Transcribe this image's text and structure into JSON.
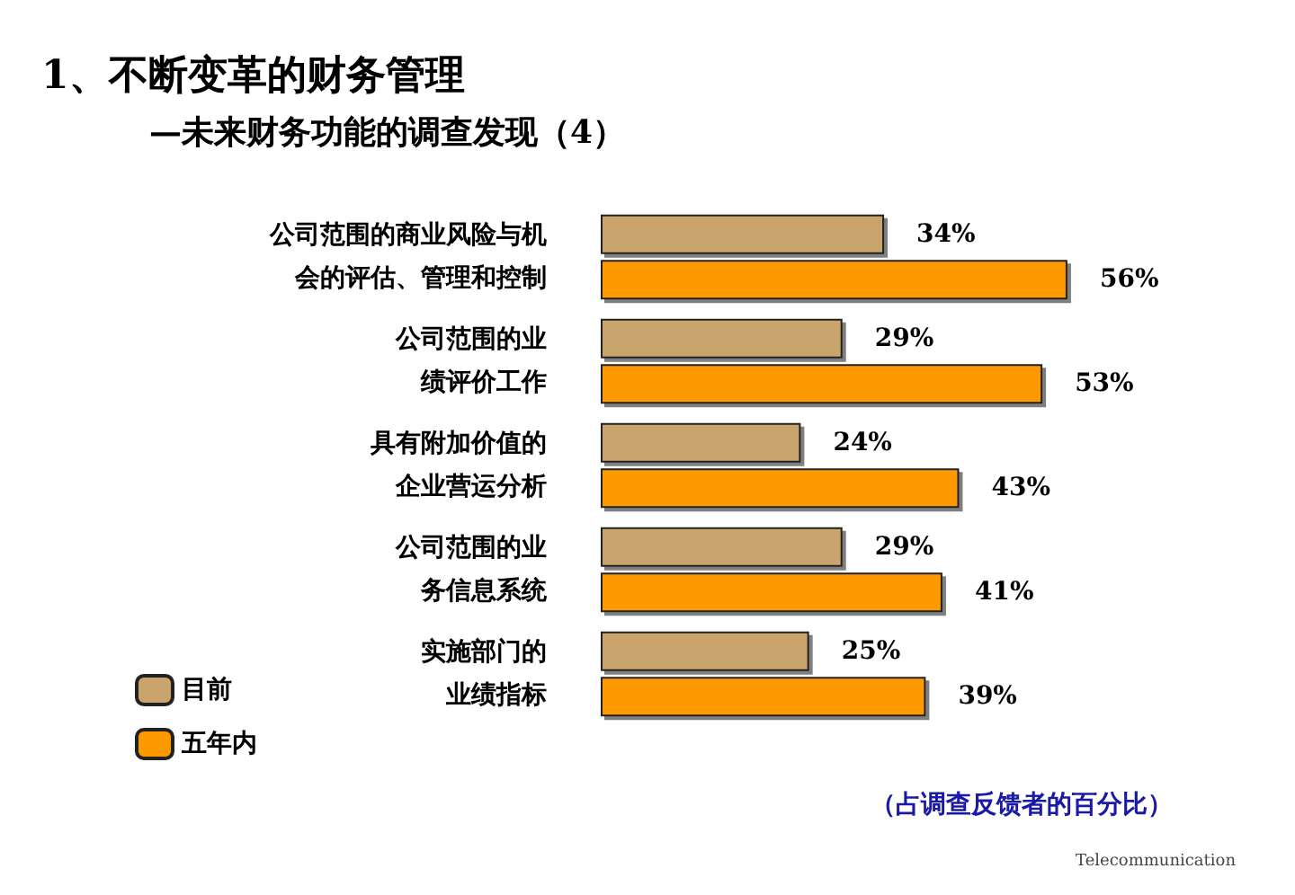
{
  "chart_data": {
    "type": "bar",
    "orientation": "horizontal",
    "title": "1、不断变革的财务管理",
    "subtitle": "—未来财务功能的调查发现（4）",
    "categories": [
      "公司范围的商业风险与机会的评估、管理和控制",
      "公司范围的业绩评价工作",
      "具有附加价值的企业营运分析",
      "公司范围的业务信息系统",
      "实施部门的业绩指标"
    ],
    "series": [
      {
        "name": "目前",
        "color": "#c9a46c",
        "values": [
          34,
          29,
          24,
          29,
          25
        ],
        "value_labels": [
          "34%",
          "29%",
          "24%",
          "29%",
          "25%"
        ]
      },
      {
        "name": "五年内",
        "color": "#ff9900",
        "values": [
          56,
          53,
          43,
          41,
          39
        ],
        "value_labels": [
          "56%",
          "53%",
          "43%",
          "41%",
          "39%"
        ]
      }
    ],
    "legend": "bottom left",
    "annotations": [
      "（占调查反馈者的百分比）",
      "Telecommunication"
    ]
  }
}
